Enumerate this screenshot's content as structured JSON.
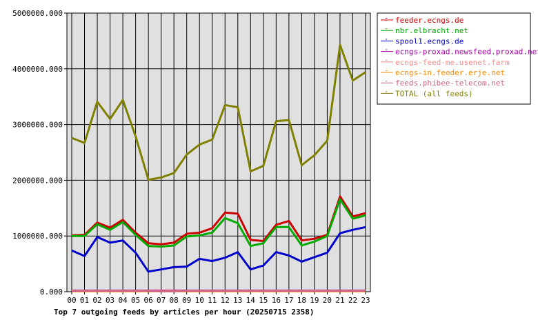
{
  "chart_data": {
    "type": "line",
    "title": "Top 7 outgoing feeds by articles per hour (20250715 2358)",
    "x": [
      "00",
      "01",
      "02",
      "03",
      "04",
      "05",
      "06",
      "07",
      "08",
      "09",
      "10",
      "11",
      "12",
      "13",
      "14",
      "15",
      "16",
      "17",
      "18",
      "19",
      "20",
      "21",
      "22",
      "23"
    ],
    "ylim": [
      0,
      5000000
    ],
    "y_ticks": [
      "0.000",
      "1000000.000",
      "2000000.000",
      "3000000.000",
      "4000000.000",
      "5000000.000"
    ],
    "grid": true,
    "legend_position": "right",
    "series": [
      {
        "name": "feeder.ecngs.de",
        "color": "#cc0000",
        "values": [
          1010000,
          1020000,
          1240000,
          1150000,
          1290000,
          1060000,
          870000,
          850000,
          880000,
          1040000,
          1060000,
          1140000,
          1420000,
          1400000,
          930000,
          910000,
          1200000,
          1270000,
          920000,
          950000,
          1020000,
          1710000,
          1350000,
          1410000
        ]
      },
      {
        "name": "nbr.elbracht.net",
        "color": "#00aa00",
        "values": [
          1000000,
          1000000,
          1210000,
          1110000,
          1250000,
          1020000,
          820000,
          810000,
          830000,
          990000,
          1010000,
          1060000,
          1320000,
          1230000,
          820000,
          870000,
          1160000,
          1160000,
          830000,
          900000,
          1000000,
          1660000,
          1310000,
          1370000
        ]
      },
      {
        "name": "spool1.ecngs.de",
        "color": "#0000cc",
        "values": [
          740000,
          640000,
          980000,
          880000,
          920000,
          700000,
          360000,
          400000,
          440000,
          450000,
          590000,
          550000,
          610000,
          710000,
          400000,
          470000,
          710000,
          650000,
          540000,
          620000,
          700000,
          1050000,
          1110000,
          1160000
        ]
      },
      {
        "name": "ecngs-proxad.newsfeed.proxad.net",
        "color": "#aa00aa",
        "values": [
          20000,
          20000,
          20000,
          20000,
          20000,
          20000,
          20000,
          20000,
          20000,
          20000,
          20000,
          20000,
          20000,
          20000,
          20000,
          20000,
          20000,
          20000,
          20000,
          20000,
          20000,
          20000,
          20000,
          20000
        ]
      },
      {
        "name": "ecngs-feed-me.usenet.farm",
        "color": "#ff8888",
        "values": [
          15000,
          15000,
          15000,
          15000,
          15000,
          15000,
          15000,
          15000,
          15000,
          15000,
          15000,
          15000,
          15000,
          15000,
          15000,
          15000,
          15000,
          15000,
          15000,
          15000,
          15000,
          15000,
          15000,
          15000
        ]
      },
      {
        "name": "ecngs-in.feeder.erje.net",
        "color": "#ff8800",
        "values": [
          10000,
          10000,
          10000,
          10000,
          10000,
          10000,
          10000,
          10000,
          10000,
          10000,
          10000,
          10000,
          10000,
          10000,
          10000,
          10000,
          10000,
          10000,
          10000,
          10000,
          10000,
          10000,
          10000,
          10000
        ]
      },
      {
        "name": "feeds.phibee-telecom.net",
        "color": "#cc6688",
        "values": [
          18000,
          18000,
          18000,
          18000,
          18000,
          18000,
          18000,
          10000,
          10000,
          18000,
          18000,
          18000,
          18000,
          18000,
          18000,
          18000,
          18000,
          18000,
          18000,
          18000,
          18000,
          18000,
          18000,
          18000
        ]
      },
      {
        "name": "TOTAL (all feeds)",
        "color": "#808000",
        "values": [
          2760000,
          2670000,
          3410000,
          3100000,
          3440000,
          2790000,
          2010000,
          2050000,
          2130000,
          2460000,
          2640000,
          2730000,
          3350000,
          3310000,
          2160000,
          2260000,
          3060000,
          3080000,
          2270000,
          2450000,
          2710000,
          4430000,
          3790000,
          3940000
        ]
      }
    ]
  }
}
